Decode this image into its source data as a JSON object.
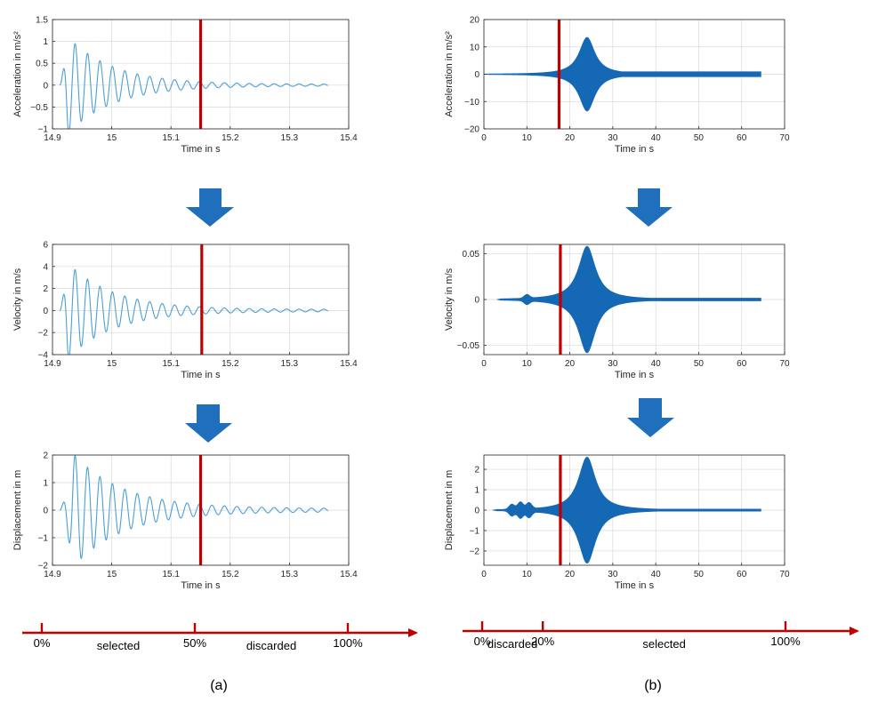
{
  "figure": {
    "panel_a_label": "(a)",
    "panel_b_label": "(b)"
  },
  "colors": {
    "signal_a": "#4a9fd8",
    "signal_b": "#1468b4",
    "cut_line": "#c00000",
    "arrow_blue": "#1f6fbd",
    "timeline": "#c00000",
    "grid": "#d9d9d9",
    "axis": "#262626"
  },
  "timelines": {
    "a": {
      "ticks": [
        {
          "pos": 0,
          "label": "0%"
        },
        {
          "pos": 50,
          "label": "50%"
        },
        {
          "pos": 100,
          "label": "100%"
        }
      ],
      "segments": [
        {
          "label": "selected",
          "from": 0,
          "to": 50
        },
        {
          "label": "discarded",
          "from": 50,
          "to": 100
        }
      ]
    },
    "b": {
      "ticks": [
        {
          "pos": 0,
          "label": "0%"
        },
        {
          "pos": 20,
          "label": "20%"
        },
        {
          "pos": 100,
          "label": "100%"
        }
      ],
      "segments": [
        {
          "label": "discarded",
          "from": 0,
          "to": 20
        },
        {
          "label": "selected",
          "from": 20,
          "to": 100
        }
      ]
    }
  },
  "chart_data": [
    {
      "id": "a-acc",
      "type": "line",
      "panel": "a",
      "xlabel": "Time in s",
      "ylabel": "Acceleration in m/s²",
      "xlim": [
        14.9,
        15.4
      ],
      "ylim": [
        -1,
        1.5
      ],
      "xticks": [
        14.9,
        15,
        15.1,
        15.2,
        15.3,
        15.4
      ],
      "yticks": [
        -1,
        -0.5,
        0,
        0.5,
        1,
        1.5
      ],
      "grid": true,
      "cut_x": 15.15,
      "series": [
        {
          "name": "acceleration",
          "style": "decaying-oscillation",
          "t_start": 14.912,
          "t_end": 15.365,
          "amplitude": 1.1,
          "peak_time": 14.925,
          "decay_per_s": 13,
          "period_s": 0.021,
          "floor_amplitude": 0.02
        }
      ]
    },
    {
      "id": "a-vel",
      "type": "line",
      "panel": "a",
      "xlabel": "Time in s",
      "ylabel": "Velocity in m/s",
      "xlim": [
        14.9,
        15.4
      ],
      "ylim": [
        -4,
        6
      ],
      "xticks": [
        14.9,
        15,
        15.1,
        15.2,
        15.3,
        15.4
      ],
      "yticks": [
        -4,
        -2,
        0,
        2,
        4,
        6
      ],
      "grid": true,
      "cut_x": 15.152,
      "series": [
        {
          "name": "velocity",
          "style": "decaying-oscillation",
          "t_start": 14.912,
          "t_end": 15.365,
          "amplitude": 4.3,
          "peak_time": 14.925,
          "decay_per_s": 13,
          "period_s": 0.021,
          "floor_amplitude": 0.1
        }
      ]
    },
    {
      "id": "a-disp",
      "type": "line",
      "panel": "a",
      "xlabel": "Time in s",
      "ylabel": "Displacement in m",
      "xlim": [
        14.9,
        15.4
      ],
      "ylim": [
        -2,
        2
      ],
      "xticks": [
        14.9,
        15,
        15.1,
        15.2,
        15.3,
        15.4
      ],
      "yticks": [
        -2,
        -1,
        0,
        1,
        2
      ],
      "grid": true,
      "cut_x": 15.15,
      "series": [
        {
          "name": "displacement",
          "style": "decaying-oscillation",
          "t_start": 14.912,
          "t_end": 15.365,
          "amplitude": 2.0,
          "peak_time": 14.935,
          "decay_per_s": 12,
          "period_s": 0.021,
          "floor_amplitude": 0.06
        }
      ]
    },
    {
      "id": "b-acc",
      "type": "area",
      "panel": "b",
      "xlabel": "Time in s",
      "ylabel": "Acceleration in m/s²",
      "xlim": [
        0,
        70
      ],
      "ylim": [
        -20,
        20
      ],
      "xticks": [
        0,
        10,
        20,
        30,
        40,
        50,
        60,
        70
      ],
      "yticks": [
        -20,
        -10,
        0,
        10,
        20
      ],
      "grid": true,
      "cut_x": 17.5,
      "series": [
        {
          "name": "acceleration envelope",
          "style": "resonance-envelope",
          "t_start": 0,
          "t_end": 64.5,
          "peak_time": 24,
          "peak": 13.5,
          "width_s": 2.2,
          "noise_bumps": [],
          "tail_min": 0.9
        }
      ]
    },
    {
      "id": "b-vel",
      "type": "area",
      "panel": "b",
      "xlabel": "Time in s",
      "ylabel": "Velocity in m/s",
      "xlim": [
        0,
        70
      ],
      "ylim": [
        -0.06,
        0.06
      ],
      "xticks": [
        0,
        10,
        20,
        30,
        40,
        50,
        60,
        70
      ],
      "yticks": [
        -0.05,
        0,
        0.05
      ],
      "grid": true,
      "cut_x": 17.8,
      "series": [
        {
          "name": "velocity envelope",
          "style": "resonance-envelope",
          "t_start": 3,
          "t_end": 64.5,
          "peak_time": 24,
          "peak": 0.058,
          "width_s": 2.4,
          "noise_bumps": [
            [
              10,
              0.004
            ]
          ],
          "tail_min": 0.0015
        }
      ]
    },
    {
      "id": "b-disp",
      "type": "area",
      "panel": "b",
      "xlabel": "Time in s",
      "ylabel": "Displacement in m",
      "xlim": [
        0,
        70
      ],
      "ylim": [
        -2.7,
        2.7
      ],
      "xticks": [
        0,
        10,
        20,
        30,
        40,
        50,
        60,
        70
      ],
      "yticks": [
        -2,
        -1,
        0,
        1,
        2
      ],
      "grid": true,
      "cut_x": 17.8,
      "series": [
        {
          "name": "displacement envelope",
          "style": "resonance-envelope",
          "t_start": 2,
          "t_end": 64.5,
          "peak_time": 24,
          "peak": 2.6,
          "width_s": 2.4,
          "noise_bumps": [
            [
              6.5,
              0.25
            ],
            [
              8.5,
              0.35
            ],
            [
              10.5,
              0.3
            ]
          ],
          "tail_min": 0.05
        }
      ]
    }
  ]
}
